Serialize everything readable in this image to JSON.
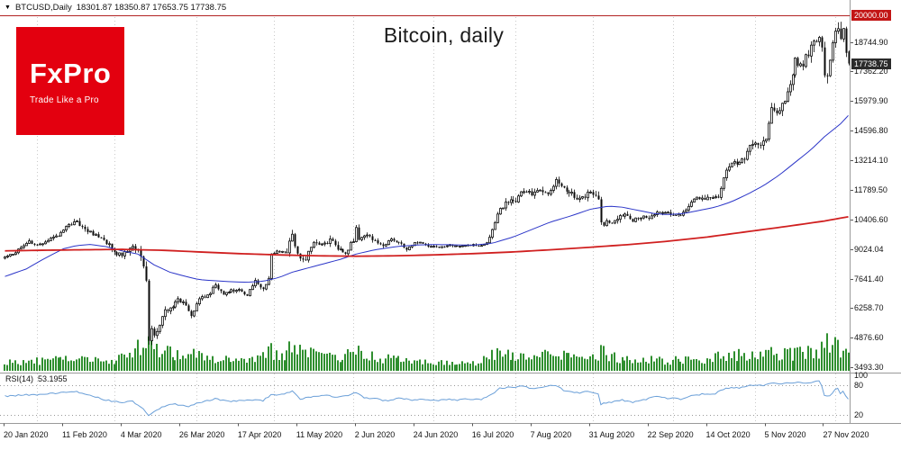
{
  "header": {
    "chart_marker": "▼",
    "symbol": "BTCUSD,Daily",
    "ohlc": "18301.87 18350.87 17653.75 17738.75"
  },
  "logo": {
    "brand": "FxPro",
    "tagline": "Trade Like a Pro",
    "bg": "#e3000f",
    "fg": "#ffffff"
  },
  "colors": {
    "up_candle": "#ffffff",
    "down_candle": "#0a0a0a",
    "candle_outline": "#0a0a0a",
    "volume": "#2f8f2f",
    "ma_fast": "#2b35c8",
    "ma_slow": "#d02020",
    "rsi_line": "#6a9fd8",
    "level_line": "#b22222",
    "badge_level_bg": "#c21515",
    "badge_price_bg": "#2b2b2b",
    "separator": "#9a9a9a"
  },
  "chart_data": {
    "type": "candlestick",
    "title": "Bitcoin, daily",
    "symbol": "BTCUSD",
    "timeframe": "Daily",
    "last_candle": {
      "open": 18301.87,
      "high": 18350.87,
      "low": 17653.75,
      "close": 17738.75
    },
    "y_axis": {
      "top_value": 20000.0,
      "bottom_value": 3493.3,
      "level_badge": "20000.00",
      "price_badge": "17738.75",
      "ticks": [
        "18744.90",
        "17362.20",
        "15979.90",
        "14596.80",
        "13214.10",
        "11789.50",
        "10406.60",
        "9024.04",
        "7641.40",
        "6258.70",
        "4876.60",
        "3493.30"
      ]
    },
    "x_labels": [
      "20 Jan 2020",
      "11 Feb 2020",
      "4 Mar 2020",
      "26 Mar 2020",
      "17 Apr 2020",
      "11 May 2020",
      "2 Jun 2020",
      "24 Jun 2020",
      "16 Jul 2020",
      "7 Aug 2020",
      "31 Aug 2020",
      "22 Sep 2020",
      "14 Oct 2020",
      "5 Nov 2020",
      "27 Nov 2020"
    ],
    "candles_per_label": 22,
    "num_candles": 318,
    "max_high": 19915,
    "crash_index": 54,
    "crash_low": 4550,
    "month_gridline_indices": [
      12,
      41,
      72,
      101,
      131,
      161,
      192,
      221,
      251,
      282,
      312
    ],
    "price_path": [
      [
        0,
        8650
      ],
      [
        4,
        8900
      ],
      [
        9,
        9380
      ],
      [
        13,
        9250
      ],
      [
        18,
        9600
      ],
      [
        22,
        9850
      ],
      [
        24,
        10180
      ],
      [
        26,
        10350
      ],
      [
        28,
        10200
      ],
      [
        31,
        9900
      ],
      [
        34,
        9680
      ],
      [
        38,
        9350
      ],
      [
        42,
        8800
      ],
      [
        44,
        8750
      ],
      [
        47,
        9120
      ],
      [
        50,
        8900
      ],
      [
        52,
        8150
      ],
      [
        53,
        7550
      ],
      [
        54,
        4880
      ],
      [
        55,
        5350
      ],
      [
        56,
        5050
      ],
      [
        58,
        5500
      ],
      [
        60,
        6180
      ],
      [
        62,
        6250
      ],
      [
        65,
        6680
      ],
      [
        68,
        6380
      ],
      [
        70,
        5920
      ],
      [
        73,
        6750
      ],
      [
        76,
        6850
      ],
      [
        79,
        7320
      ],
      [
        82,
        6870
      ],
      [
        85,
        7080
      ],
      [
        88,
        7120
      ],
      [
        91,
        6900
      ],
      [
        94,
        7500
      ],
      [
        97,
        7100
      ],
      [
        99,
        7750
      ],
      [
        100,
        8820
      ],
      [
        103,
        8900
      ],
      [
        106,
        8750
      ],
      [
        108,
        9850
      ],
      [
        110,
        8720
      ],
      [
        113,
        8620
      ],
      [
        116,
        9350
      ],
      [
        119,
        9180
      ],
      [
        122,
        9500
      ],
      [
        125,
        9050
      ],
      [
        128,
        8850
      ],
      [
        131,
        9480
      ],
      [
        132,
        10150
      ],
      [
        133,
        9520
      ],
      [
        136,
        9680
      ],
      [
        139,
        9420
      ],
      [
        142,
        9130
      ],
      [
        145,
        9480
      ],
      [
        148,
        9350
      ],
      [
        151,
        9060
      ],
      [
        154,
        9360
      ],
      [
        157,
        9280
      ],
      [
        160,
        9150
      ],
      [
        163,
        9120
      ],
      [
        166,
        9230
      ],
      [
        169,
        9180
      ],
      [
        172,
        9160
      ],
      [
        175,
        9230
      ],
      [
        178,
        9180
      ],
      [
        181,
        9300
      ],
      [
        183,
        9950
      ],
      [
        186,
        11000
      ],
      [
        189,
        11220
      ],
      [
        192,
        11350
      ],
      [
        195,
        11750
      ],
      [
        198,
        11600
      ],
      [
        201,
        11880
      ],
      [
        204,
        11560
      ],
      [
        207,
        12280
      ],
      [
        209,
        11950
      ],
      [
        212,
        11750
      ],
      [
        215,
        11450
      ],
      [
        218,
        11560
      ],
      [
        220,
        11680
      ],
      [
        223,
        11420
      ],
      [
        224,
        10180
      ],
      [
        227,
        10290
      ],
      [
        230,
        10420
      ],
      [
        233,
        10750
      ],
      [
        236,
        10380
      ],
      [
        239,
        10560
      ],
      [
        242,
        10450
      ],
      [
        245,
        10780
      ],
      [
        248,
        10720
      ],
      [
        251,
        10620
      ],
      [
        254,
        10580
      ],
      [
        257,
        11080
      ],
      [
        260,
        11420
      ],
      [
        263,
        11380
      ],
      [
        265,
        11510
      ],
      [
        268,
        11440
      ],
      [
        271,
        12820
      ],
      [
        274,
        13050
      ],
      [
        277,
        13150
      ],
      [
        280,
        13780
      ],
      [
        283,
        13950
      ],
      [
        286,
        14150
      ],
      [
        288,
        15600
      ],
      [
        291,
        15500
      ],
      [
        294,
        16350
      ],
      [
        297,
        17800
      ],
      [
        300,
        17750
      ],
      [
        303,
        18400
      ],
      [
        306,
        19150
      ],
      [
        307,
        18750
      ],
      [
        308,
        17150
      ],
      [
        310,
        17750
      ],
      [
        312,
        19150
      ],
      [
        313,
        19430
      ],
      [
        314,
        18750
      ],
      [
        315,
        19250
      ],
      [
        316,
        18300
      ],
      [
        317,
        17738.75
      ]
    ],
    "volatility": [
      [
        0,
        0.02
      ],
      [
        26,
        0.025
      ],
      [
        44,
        0.03
      ],
      [
        50,
        0.05
      ],
      [
        54,
        0.1
      ],
      [
        56,
        0.06
      ],
      [
        66,
        0.04
      ],
      [
        88,
        0.025
      ],
      [
        100,
        0.035
      ],
      [
        108,
        0.04
      ],
      [
        132,
        0.03
      ],
      [
        154,
        0.018
      ],
      [
        176,
        0.013
      ],
      [
        186,
        0.03
      ],
      [
        207,
        0.025
      ],
      [
        224,
        0.035
      ],
      [
        242,
        0.02
      ],
      [
        271,
        0.025
      ],
      [
        286,
        0.03
      ],
      [
        306,
        0.035
      ],
      [
        308,
        0.05
      ],
      [
        313,
        0.035
      ],
      [
        317,
        0.025
      ]
    ],
    "volume_envelope": [
      [
        0,
        0.18
      ],
      [
        15,
        0.22
      ],
      [
        26,
        0.28
      ],
      [
        37,
        0.2
      ],
      [
        44,
        0.3
      ],
      [
        50,
        0.55
      ],
      [
        54,
        1.0
      ],
      [
        55,
        0.85
      ],
      [
        57,
        0.6
      ],
      [
        60,
        0.5
      ],
      [
        64,
        0.45
      ],
      [
        68,
        0.4
      ],
      [
        73,
        0.35
      ],
      [
        80,
        0.3
      ],
      [
        88,
        0.28
      ],
      [
        94,
        0.3
      ],
      [
        100,
        0.5
      ],
      [
        104,
        0.4
      ],
      [
        108,
        0.55
      ],
      [
        112,
        0.45
      ],
      [
        118,
        0.35
      ],
      [
        125,
        0.3
      ],
      [
        132,
        0.45
      ],
      [
        139,
        0.3
      ],
      [
        147,
        0.25
      ],
      [
        154,
        0.22
      ],
      [
        161,
        0.18
      ],
      [
        169,
        0.15
      ],
      [
        176,
        0.15
      ],
      [
        183,
        0.35
      ],
      [
        186,
        0.5
      ],
      [
        191,
        0.4
      ],
      [
        198,
        0.35
      ],
      [
        207,
        0.4
      ],
      [
        213,
        0.3
      ],
      [
        220,
        0.3
      ],
      [
        224,
        0.45
      ],
      [
        230,
        0.3
      ],
      [
        235,
        0.25
      ],
      [
        242,
        0.25
      ],
      [
        249,
        0.22
      ],
      [
        257,
        0.28
      ],
      [
        264,
        0.25
      ],
      [
        271,
        0.4
      ],
      [
        279,
        0.35
      ],
      [
        286,
        0.45
      ],
      [
        294,
        0.4
      ],
      [
        300,
        0.45
      ],
      [
        306,
        0.5
      ],
      [
        307,
        0.6
      ],
      [
        308,
        1.0
      ],
      [
        310,
        0.55
      ],
      [
        313,
        0.9
      ],
      [
        314,
        0.6
      ],
      [
        315,
        0.5
      ],
      [
        316,
        0.45
      ],
      [
        317,
        0.35
      ]
    ],
    "ma_fast": [
      [
        0,
        7750
      ],
      [
        8,
        8100
      ],
      [
        15,
        8600
      ],
      [
        22,
        9050
      ],
      [
        27,
        9200
      ],
      [
        32,
        9250
      ],
      [
        38,
        9150
      ],
      [
        44,
        8950
      ],
      [
        50,
        8800
      ],
      [
        56,
        8300
      ],
      [
        62,
        7950
      ],
      [
        68,
        7750
      ],
      [
        73,
        7600
      ],
      [
        79,
        7550
      ],
      [
        85,
        7500
      ],
      [
        91,
        7480
      ],
      [
        97,
        7520
      ],
      [
        103,
        7700
      ],
      [
        108,
        7950
      ],
      [
        114,
        8150
      ],
      [
        120,
        8350
      ],
      [
        126,
        8550
      ],
      [
        132,
        8800
      ],
      [
        139,
        9000
      ],
      [
        147,
        9150
      ],
      [
        154,
        9220
      ],
      [
        161,
        9250
      ],
      [
        169,
        9230
      ],
      [
        176,
        9220
      ],
      [
        183,
        9300
      ],
      [
        191,
        9600
      ],
      [
        198,
        9950
      ],
      [
        205,
        10300
      ],
      [
        213,
        10600
      ],
      [
        220,
        10900
      ],
      [
        227,
        11050
      ],
      [
        232,
        11000
      ],
      [
        238,
        10850
      ],
      [
        244,
        10700
      ],
      [
        249,
        10650
      ],
      [
        255,
        10700
      ],
      [
        261,
        10850
      ],
      [
        267,
        11000
      ],
      [
        273,
        11250
      ],
      [
        279,
        11600
      ],
      [
        285,
        12000
      ],
      [
        291,
        12500
      ],
      [
        297,
        13100
      ],
      [
        303,
        13700
      ],
      [
        308,
        14300
      ],
      [
        314,
        14900
      ],
      [
        317,
        15300
      ]
    ],
    "ma_slow": [
      [
        0,
        8950
      ],
      [
        15,
        8980
      ],
      [
        29,
        9000
      ],
      [
        44,
        9020
      ],
      [
        59,
        8980
      ],
      [
        73,
        8900
      ],
      [
        88,
        8820
      ],
      [
        103,
        8760
      ],
      [
        117,
        8720
      ],
      [
        132,
        8700
      ],
      [
        147,
        8720
      ],
      [
        161,
        8760
      ],
      [
        176,
        8820
      ],
      [
        191,
        8900
      ],
      [
        205,
        9000
      ],
      [
        220,
        9120
      ],
      [
        235,
        9250
      ],
      [
        249,
        9400
      ],
      [
        264,
        9600
      ],
      [
        279,
        9850
      ],
      [
        294,
        10100
      ],
      [
        308,
        10350
      ],
      [
        317,
        10550
      ]
    ],
    "rsi": {
      "label": "RSI(14)",
      "value": "53.1955",
      "levels": [
        100,
        80,
        20
      ],
      "axis_labels": [
        "100",
        "80",
        "20"
      ],
      "path": [
        [
          0,
          58
        ],
        [
          7,
          60
        ],
        [
          15,
          62
        ],
        [
          22,
          65
        ],
        [
          26,
          68
        ],
        [
          32,
          60
        ],
        [
          38,
          50
        ],
        [
          44,
          45
        ],
        [
          48,
          48
        ],
        [
          52,
          32
        ],
        [
          54,
          18
        ],
        [
          56,
          25
        ],
        [
          60,
          38
        ],
        [
          64,
          42
        ],
        [
          69,
          36
        ],
        [
          73,
          45
        ],
        [
          79,
          52
        ],
        [
          85,
          48
        ],
        [
          91,
          50
        ],
        [
          97,
          49
        ],
        [
          100,
          60
        ],
        [
          104,
          62
        ],
        [
          108,
          68
        ],
        [
          111,
          52
        ],
        [
          116,
          58
        ],
        [
          120,
          60
        ],
        [
          125,
          55
        ],
        [
          129,
          60
        ],
        [
          132,
          66
        ],
        [
          135,
          55
        ],
        [
          139,
          53
        ],
        [
          144,
          48
        ],
        [
          148,
          54
        ],
        [
          153,
          50
        ],
        [
          157,
          52
        ],
        [
          161,
          49
        ],
        [
          166,
          51
        ],
        [
          170,
          50
        ],
        [
          175,
          52
        ],
        [
          179,
          51
        ],
        [
          183,
          62
        ],
        [
          186,
          74
        ],
        [
          191,
          76
        ],
        [
          195,
          78
        ],
        [
          198,
          74
        ],
        [
          202,
          76
        ],
        [
          207,
          80
        ],
        [
          210,
          70
        ],
        [
          214,
          64
        ],
        [
          219,
          67
        ],
        [
          223,
          62
        ],
        [
          224,
          42
        ],
        [
          227,
          45
        ],
        [
          232,
          50
        ],
        [
          236,
          46
        ],
        [
          241,
          52
        ],
        [
          245,
          57
        ],
        [
          249,
          54
        ],
        [
          254,
          52
        ],
        [
          258,
          60
        ],
        [
          263,
          62
        ],
        [
          267,
          63
        ],
        [
          271,
          74
        ],
        [
          276,
          75
        ],
        [
          280,
          79
        ],
        [
          285,
          80
        ],
        [
          288,
          84
        ],
        [
          292,
          82
        ],
        [
          297,
          86
        ],
        [
          301,
          84
        ],
        [
          306,
          88
        ],
        [
          307,
          80
        ],
        [
          308,
          58
        ],
        [
          310,
          60
        ],
        [
          312,
          70
        ],
        [
          313,
          74
        ],
        [
          314,
          64
        ],
        [
          315,
          68
        ],
        [
          316,
          58
        ],
        [
          317,
          53.2
        ]
      ]
    }
  }
}
